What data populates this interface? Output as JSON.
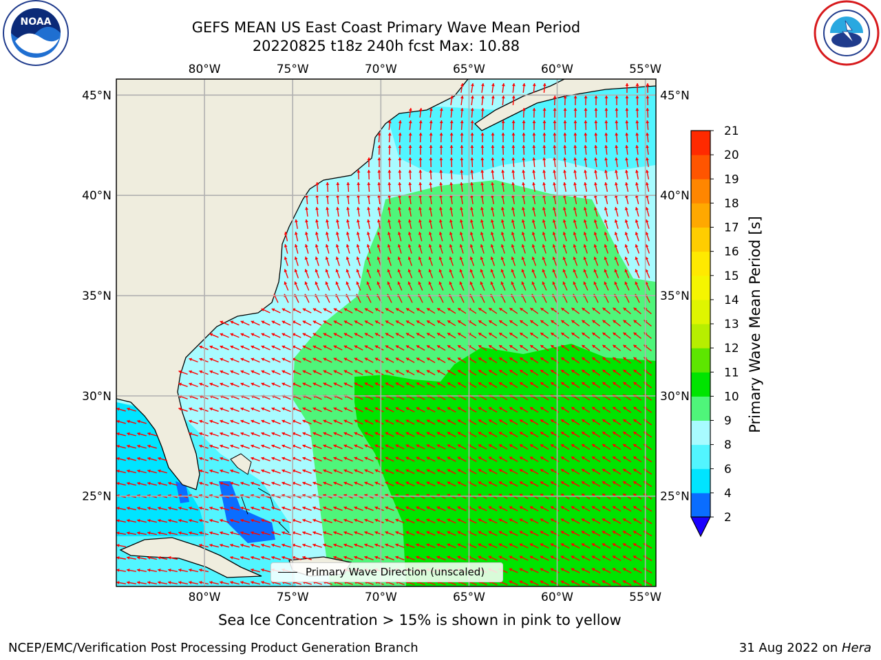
{
  "title": {
    "line1": "GEFS MEAN US East Coast Primary Wave Mean Period",
    "line2": "20220825 t18z 240h fcst   Max: 10.88"
  },
  "logos": {
    "left": {
      "icon": "noaa-logo-icon",
      "text": "NOAA"
    },
    "right": {
      "icon": "national-weather-service-logo-icon"
    }
  },
  "map": {
    "lon_labels": [
      "80°W",
      "75°W",
      "70°W",
      "65°W",
      "60°W",
      "55°W"
    ],
    "lat_labels": [
      "45°N",
      "40°N",
      "35°N",
      "30°N",
      "25°N"
    ],
    "lon_values": [
      -80,
      -75,
      -70,
      -65,
      -60,
      -55
    ],
    "lat_values": [
      45,
      40,
      35,
      30,
      25
    ],
    "extent": {
      "lon_min": -85,
      "lon_max": -54.4,
      "lat_min": 20.5,
      "lat_max": 45.8
    },
    "land_color": "#efedde",
    "grid_color": "#b0b0b0",
    "arrow_color": "#ff0000",
    "legend_label": "Primary Wave Direction (unscaled)"
  },
  "colorbar": {
    "label": "Primary Wave Mean Period [s]",
    "ticks": [
      "2",
      "4",
      "6",
      "8",
      "9",
      "10",
      "11",
      "12",
      "13",
      "14",
      "15",
      "16",
      "17",
      "18",
      "19",
      "20",
      "21"
    ],
    "colors": [
      "#0a6dff",
      "#00e4ff",
      "#52f5ff",
      "#a8fbff",
      "#4ff57a",
      "#00e400",
      "#5de600",
      "#b7ee00",
      "#dff500",
      "#f5f500",
      "#ffe900",
      "#ffcd00",
      "#ffa800",
      "#ff8600",
      "#ff5500",
      "#ff2a00"
    ],
    "under_color": "#1a00ff",
    "extend": "min"
  },
  "sea_ice_note": "Sea Ice Concentration > 15% is shown in pink to yellow",
  "footer": {
    "left": "NCEP/EMC/Verification Post Processing Product Generation Branch",
    "right_date": "31 Aug 2022 on ",
    "right_host": "Hera"
  }
}
